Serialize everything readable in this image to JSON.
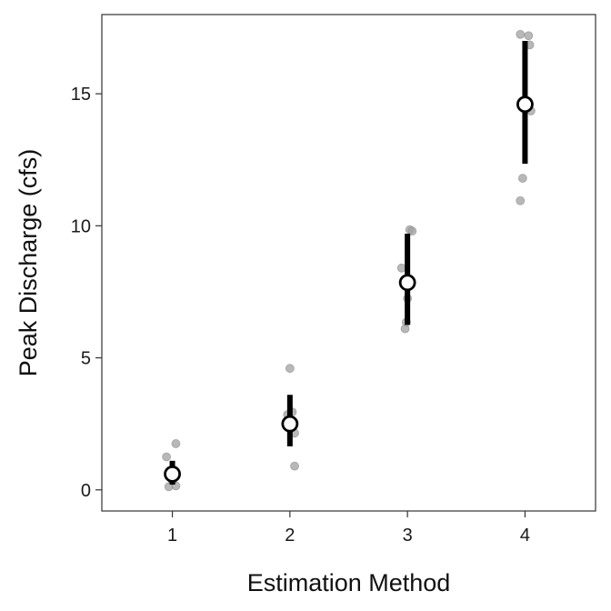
{
  "chart_data": {
    "type": "scatter",
    "title": "",
    "xlabel": "Estimation Method",
    "ylabel": "Peak Discharge (cfs)",
    "xlim": [
      0.4,
      4.6
    ],
    "ylim": [
      -0.8,
      18.0
    ],
    "x_ticks": [
      1,
      2,
      3,
      4
    ],
    "x_tick_labels": [
      "1",
      "2",
      "3",
      "4"
    ],
    "y_ticks": [
      0,
      5,
      10,
      15
    ],
    "y_tick_labels": [
      "0",
      "5",
      "10",
      "15"
    ],
    "grid": false,
    "legend": "none",
    "colors": {
      "points": "#a0a0a0",
      "point_edge": "#808080",
      "interval": "#000000",
      "mean_fill": "#ffffff",
      "mean_edge": "#000000",
      "axis": "#333333"
    },
    "raw_points": [
      {
        "method": 1,
        "x": 0.95,
        "y": 1.25
      },
      {
        "method": 1,
        "x": 1.03,
        "y": 1.75
      },
      {
        "method": 1,
        "x": 0.97,
        "y": 0.12
      },
      {
        "method": 1,
        "x": 1.03,
        "y": 0.15
      },
      {
        "method": 1,
        "x": 1.0,
        "y": 0.35
      },
      {
        "method": 2,
        "x": 2.0,
        "y": 4.6
      },
      {
        "method": 2,
        "x": 1.98,
        "y": 2.85
      },
      {
        "method": 2,
        "x": 2.02,
        "y": 2.95
      },
      {
        "method": 2,
        "x": 2.04,
        "y": 2.15
      },
      {
        "method": 2,
        "x": 2.04,
        "y": 0.9
      },
      {
        "method": 3,
        "x": 3.02,
        "y": 9.85
      },
      {
        "method": 3,
        "x": 3.04,
        "y": 9.8
      },
      {
        "method": 3,
        "x": 2.95,
        "y": 8.4
      },
      {
        "method": 3,
        "x": 3.0,
        "y": 7.25
      },
      {
        "method": 3,
        "x": 2.99,
        "y": 6.35
      },
      {
        "method": 3,
        "x": 2.98,
        "y": 6.1
      },
      {
        "method": 4,
        "x": 3.96,
        "y": 17.25
      },
      {
        "method": 4,
        "x": 4.03,
        "y": 17.2
      },
      {
        "method": 4,
        "x": 4.04,
        "y": 16.85
      },
      {
        "method": 4,
        "x": 4.05,
        "y": 14.35
      },
      {
        "method": 4,
        "x": 3.98,
        "y": 11.8
      },
      {
        "method": 4,
        "x": 3.96,
        "y": 10.95
      }
    ],
    "summary": [
      {
        "method": 1,
        "mean": 0.6,
        "lower": 0.2,
        "upper": 1.1
      },
      {
        "method": 2,
        "mean": 2.5,
        "lower": 1.65,
        "upper": 3.6
      },
      {
        "method": 3,
        "mean": 7.85,
        "lower": 6.25,
        "upper": 9.7
      },
      {
        "method": 4,
        "mean": 14.6,
        "lower": 12.35,
        "upper": 17.0
      }
    ]
  }
}
